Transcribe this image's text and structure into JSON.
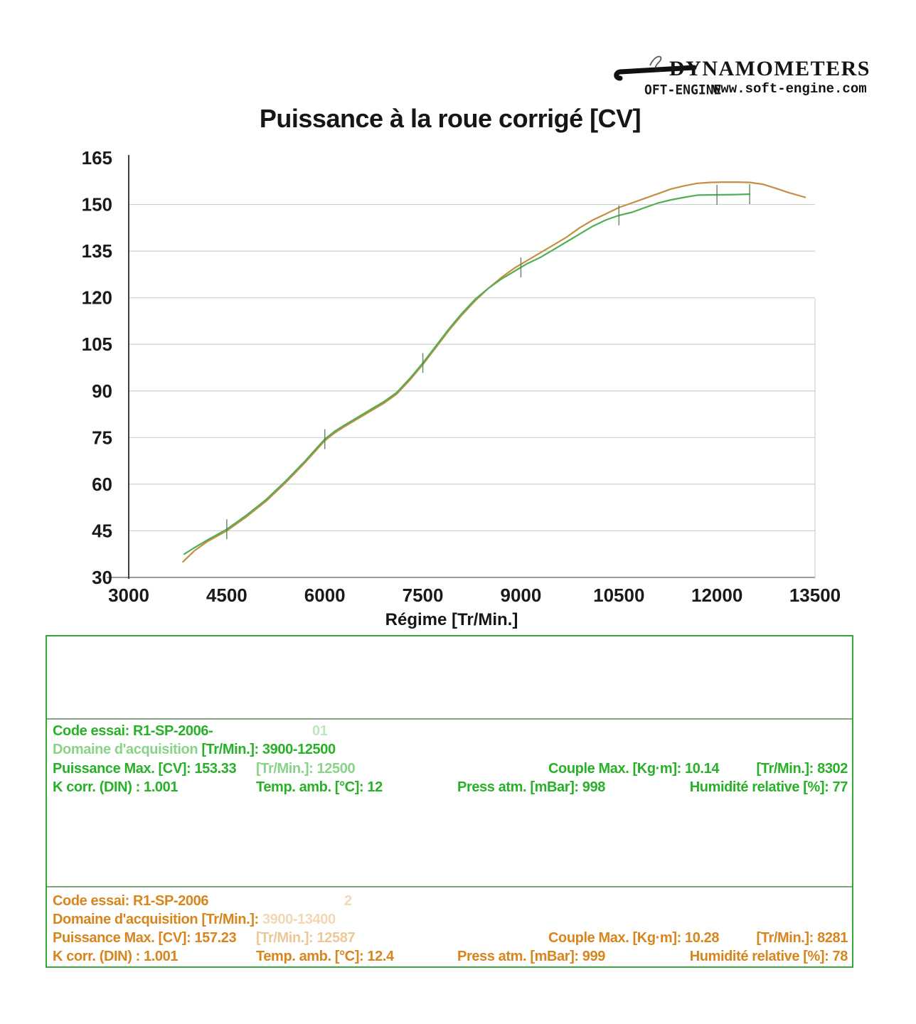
{
  "header": {
    "brand": "DYNAMOMETERS",
    "brand_sub": "OFT-ENGINE",
    "url": "www.soft-engine.com"
  },
  "chart_data": {
    "type": "line",
    "title": "Puissance à la roue corrigé [CV]",
    "xlabel": "Régime [Tr/Min.]",
    "ylabel": "",
    "xlim": [
      3000,
      13500
    ],
    "ylim": [
      30,
      165
    ],
    "x_ticks": [
      3000,
      4500,
      6000,
      7500,
      9000,
      10500,
      12000,
      13500
    ],
    "y_ticks": [
      30,
      45,
      60,
      75,
      90,
      105,
      120,
      135,
      150,
      165
    ],
    "grid": "horizontal",
    "legend": "none",
    "curve_tick_rpm": [
      4500,
      6000,
      7500,
      9000,
      10500,
      12000,
      12500
    ],
    "series": [
      {
        "id": "orange",
        "name": "R1-SP-2006 run 2 (157.23 CV max)",
        "color": "#c78d42",
        "x": [
          3830,
          4000,
          4200,
          4500,
          4800,
          5100,
          5400,
          5700,
          6000,
          6150,
          6300,
          6500,
          6700,
          6900,
          7100,
          7300,
          7500,
          7700,
          7900,
          8100,
          8300,
          8500,
          8700,
          8900,
          9100,
          9300,
          9500,
          9700,
          9900,
          10100,
          10300,
          10500,
          10700,
          10900,
          11100,
          11300,
          11500,
          11700,
          11900,
          12100,
          12300,
          12500,
          12700,
          12900,
          13100,
          13350
        ],
        "values": [
          35,
          38.5,
          41.5,
          45,
          49.5,
          54.5,
          60.5,
          67,
          74,
          76.5,
          78.5,
          81,
          83.5,
          86,
          89,
          93.5,
          98.5,
          104,
          109.5,
          114.5,
          119,
          123,
          126.5,
          129.5,
          132,
          134.5,
          137,
          139.5,
          142.5,
          145,
          147,
          149,
          150.5,
          152,
          153.5,
          155,
          156,
          156.8,
          157.1,
          157.2,
          157.2,
          157.1,
          156.5,
          155.2,
          153.8,
          152.3
        ]
      },
      {
        "id": "green",
        "name": "R1-SP-2006 run 1 (153.33 CV max)",
        "color": "#53ae53",
        "x": [
          3850,
          4000,
          4200,
          4500,
          4800,
          5100,
          5400,
          5700,
          6000,
          6150,
          6300,
          6500,
          6700,
          6900,
          7100,
          7300,
          7500,
          7700,
          7900,
          8100,
          8300,
          8500,
          8700,
          8900,
          9100,
          9300,
          9500,
          9700,
          9900,
          10100,
          10300,
          10500,
          10700,
          10900,
          11100,
          11300,
          11500,
          11700,
          12000,
          12300,
          12500
        ],
        "values": [
          37.5,
          39.5,
          42,
          45.5,
          50,
          55,
          61,
          67.5,
          74.5,
          77,
          79,
          81.5,
          84,
          86.5,
          89.5,
          94,
          99,
          104.5,
          110,
          115,
          119.5,
          123,
          126,
          128.5,
          131,
          133,
          135.5,
          138,
          140.5,
          143,
          145,
          146.5,
          147.5,
          149,
          150.5,
          151.5,
          152.3,
          153,
          153.1,
          153.2,
          153.33
        ]
      }
    ]
  },
  "panel": {
    "runs": [
      {
        "color": "#29b029",
        "code": "Code essai: R1-SP-2006-",
        "code_faded": "01",
        "domaine_label": "Domaine d'acquisition",
        "domaine_mid": " [Tr/Min.]: ",
        "domaine_value": "3900-12500",
        "puissance": "Puissance Max. [CV]: 153.33",
        "puissance_rpm": "[Tr/Min.]: 12500",
        "couple": "Couple Max. [Kg·m]: 10.14",
        "couple_rpm": "[Tr/Min.]: 8302",
        "kcorr": "K corr. (DIN) : 1.001",
        "temp": "Temp. amb. [°C]: 12",
        "press": "Press atm. [mBar]: 998",
        "humidite": "Humidité relative [%]: 77"
      },
      {
        "color": "#d8851e",
        "code": "Code essai: R1-SP-2006",
        "code_faded": "2",
        "domaine_label": "Domaine d'acquisition",
        "domaine_mid": " [Tr/Min.]: ",
        "domaine_value": "3900-13400",
        "puissance": "Puissance Max. [CV]: 157.23",
        "puissance_rpm": "[Tr/Min.]: 12587",
        "couple": "Couple Max. [Kg·m]: 10.28",
        "couple_rpm": "[Tr/Min.]: 8281",
        "kcorr": "K corr. (DIN) : 1.001",
        "temp": "Temp. amb. [°C]: 12.4",
        "press": "Press atm. [mBar]: 999",
        "humidite": "Humidité relative [%]: 78"
      }
    ]
  }
}
